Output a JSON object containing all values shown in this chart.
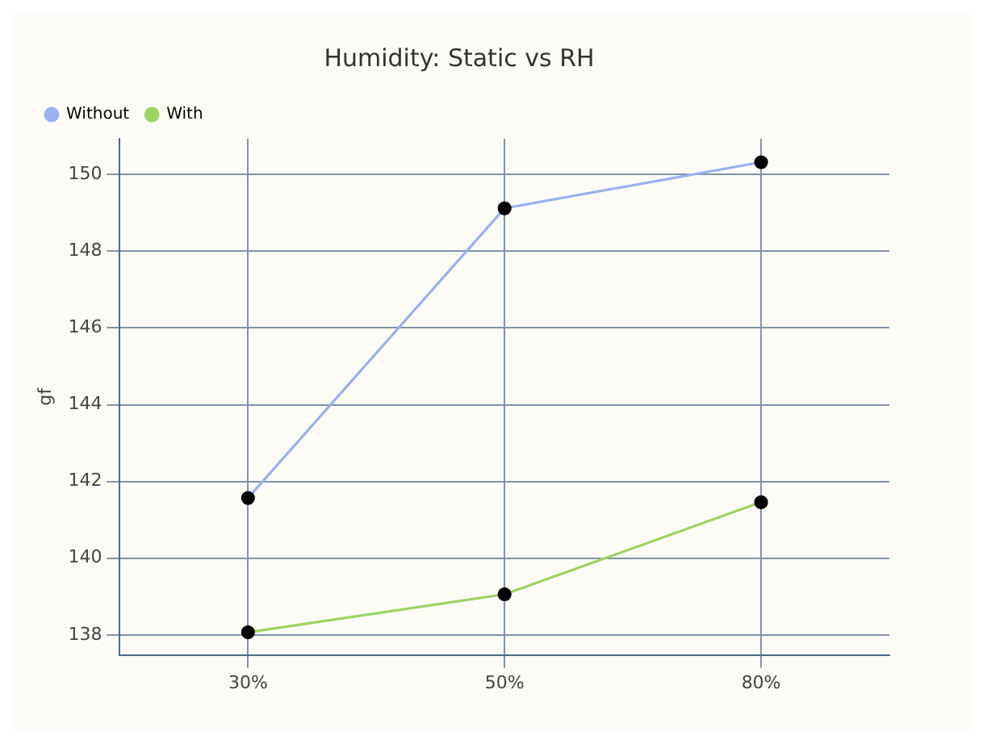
{
  "chart_data": {
    "type": "line",
    "title": "Humidity: Static vs RH",
    "ylabel": "gf",
    "categories": [
      "30%",
      "50%",
      "80%"
    ],
    "series": [
      {
        "name": "Without",
        "color": "#9ab0f0",
        "values": [
          141.57,
          149.12,
          150.32
        ]
      },
      {
        "name": "With",
        "color": "#9cd462",
        "values": [
          138.07,
          139.06,
          141.46
        ]
      }
    ],
    "ylim": [
      137.48,
      150.93
    ],
    "yticks": [
      138,
      140,
      142,
      144,
      146,
      148,
      150
    ],
    "grid": true,
    "legend": "top left",
    "marker": "circle",
    "line_style": "solid"
  }
}
